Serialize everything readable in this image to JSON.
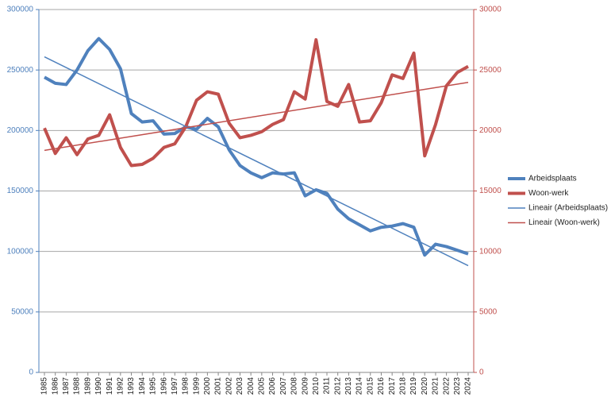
{
  "chart_data": {
    "type": "line",
    "categories": [
      "1985",
      "1986",
      "1987",
      "1988",
      "1989",
      "1990",
      "1991",
      "1992",
      "1993",
      "1994",
      "1995",
      "1996",
      "1997",
      "1998",
      "1999",
      "2000",
      "2001",
      "2002",
      "2003",
      "2004",
      "2005",
      "2006",
      "2007",
      "2008",
      "2009",
      "2010",
      "2011",
      "2012",
      "2013",
      "2014",
      "2015",
      "2016",
      "2017",
      "2018",
      "2019",
      "2020",
      "2021",
      "2022",
      "2023",
      "2024"
    ],
    "series": [
      {
        "name": "Arbeidsplaats",
        "color": "#4f81bd",
        "axis": "y",
        "values": [
          244000,
          239000,
          238000,
          250000,
          266000,
          276000,
          267000,
          251000,
          214000,
          207000,
          208000,
          197000,
          197500,
          203000,
          201000,
          210000,
          203000,
          184000,
          171000,
          165000,
          161000,
          165000,
          164000,
          165000,
          146000,
          151000,
          148000,
          135000,
          127000,
          122000,
          117000,
          120000,
          121000,
          123000,
          120000,
          97000,
          106000,
          104000,
          101000,
          98000
        ]
      },
      {
        "name": "Woon-werk",
        "color": "#c0504d",
        "axis": "y2",
        "values": [
          20200,
          18100,
          19400,
          18000,
          19300,
          19600,
          21300,
          18600,
          17100,
          17200,
          17700,
          18600,
          18900,
          20300,
          22500,
          23200,
          23000,
          20600,
          19400,
          19600,
          19900,
          20500,
          20900,
          23200,
          22600,
          27500,
          22400,
          22000,
          23800,
          20700,
          20800,
          22300,
          24600,
          24300,
          26400,
          17900,
          20500,
          23700,
          24800,
          25300
        ]
      }
    ],
    "trendlines": [
      {
        "name": "Lineair (Arbeidsplaats)",
        "color": "#4f81bd",
        "series": 0
      },
      {
        "name": "Lineair (Woon-werk)",
        "color": "#c0504d",
        "series": 1
      }
    ],
    "ylim": [
      0,
      300000
    ],
    "yticks": [
      0,
      50000,
      100000,
      150000,
      200000,
      250000,
      300000
    ],
    "y2lim": [
      0,
      30000
    ],
    "y2ticks": [
      0,
      5000,
      10000,
      15000,
      20000,
      25000,
      30000
    ],
    "grid": true
  }
}
